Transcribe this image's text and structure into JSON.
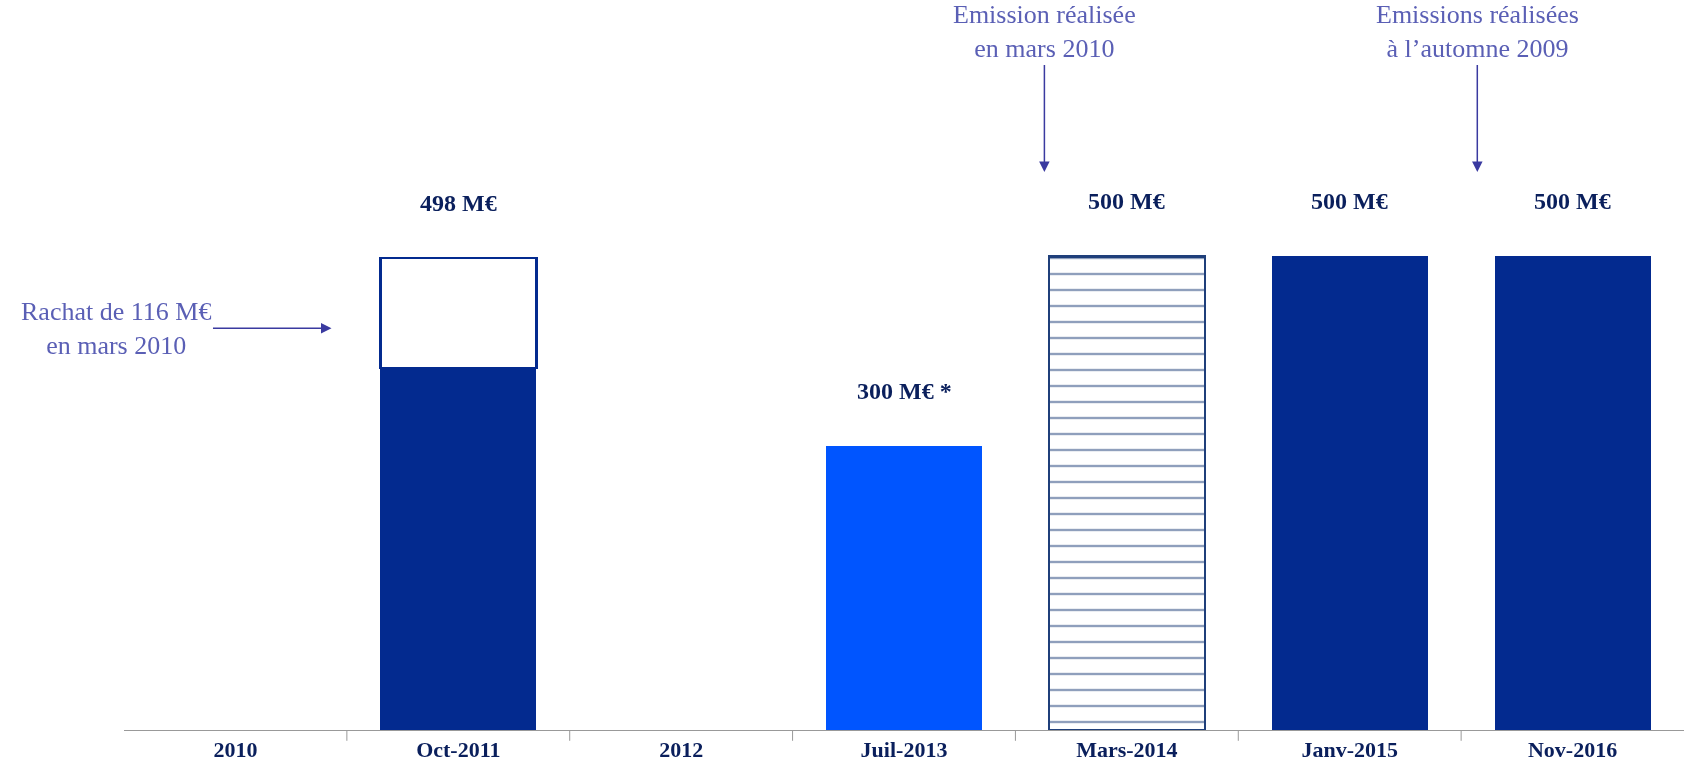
{
  "chart_data": {
    "type": "bar",
    "stacked": true,
    "categories": [
      "2010",
      "Oct-2011",
      "2012",
      "Juil-2013",
      "Mars-2014",
      "Janv-2015",
      "Nov-2016"
    ],
    "series": [
      {
        "colors": [
          "#032a8f",
          "#032a8f",
          "#032a8f",
          "#0055ff",
          "#032a8f",
          "#032a8f",
          "#032a8f"
        ],
        "values": [
          null,
          382,
          null,
          300,
          null,
          500,
          500
        ],
        "value_labels": [
          null,
          null,
          null,
          "300 M€ *",
          null,
          "500 M€",
          "500 M€"
        ]
      },
      {
        "color": "#1f3f7a",
        "line_style": "dashed",
        "values": [
          null,
          null,
          null,
          null,
          500,
          null,
          null
        ],
        "value_labels": [
          null,
          null,
          null,
          null,
          "500 M€",
          null,
          null
        ]
      },
      {
        "color": "#032a8f",
        "line_style": "dashed",
        "values": [
          null,
          116,
          null,
          null,
          null,
          null,
          null
        ]
      }
    ],
    "totals": [
      null,
      "498 M€",
      null,
      null,
      null,
      null,
      null
    ],
    "annotations": [
      "Rachat de 116 M€\nen mars 2010",
      "Emission réalisée\nen mars 2010",
      "Emissions réalisées\nà l’automne 2009"
    ]
  }
}
